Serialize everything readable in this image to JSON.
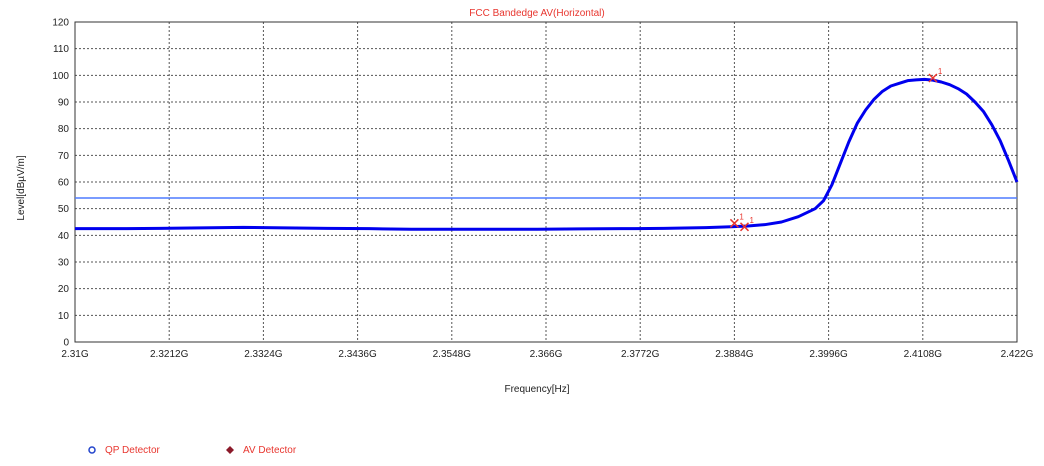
{
  "chart_data": {
    "type": "line",
    "title": "FCC Bandedge AV(Horizontal)",
    "xlabel": "Frequency[Hz]",
    "ylabel": "Level[dBµV/m]",
    "xlim": [
      2.31,
      2.422
    ],
    "ylim": [
      0,
      120
    ],
    "x_unit": "GHz",
    "xticks": [
      2.31,
      2.3212,
      2.3324,
      2.3436,
      2.3548,
      2.366,
      2.3772,
      2.3884,
      2.3996,
      2.4108,
      2.422
    ],
    "xtick_labels": [
      "2.31G",
      "2.3212G",
      "2.3324G",
      "2.3436G",
      "2.3548G",
      "2.366G",
      "2.3772G",
      "2.3884G",
      "2.3996G",
      "2.4108G",
      "2.422G"
    ],
    "yticks": [
      0,
      10,
      20,
      30,
      40,
      50,
      60,
      70,
      80,
      90,
      100,
      110,
      120
    ],
    "ytick_labels": [
      "0",
      "10",
      "20",
      "30",
      "40",
      "50",
      "60",
      "70",
      "80",
      "90",
      "100",
      "110",
      "120"
    ],
    "grid": true,
    "limit_lines": [
      {
        "y": 54,
        "color": "#4f7cff"
      }
    ],
    "series": [
      {
        "color": "#0000ee",
        "x": [
          2.31,
          2.315,
          2.32,
          2.325,
          2.33,
          2.335,
          2.34,
          2.345,
          2.35,
          2.355,
          2.36,
          2.365,
          2.37,
          2.375,
          2.38,
          2.385,
          2.388,
          2.39,
          2.392,
          2.394,
          2.396,
          2.398,
          2.399,
          2.4,
          2.401,
          2.402,
          2.403,
          2.404,
          2.405,
          2.406,
          2.407,
          2.408,
          2.409,
          2.41,
          2.411,
          2.412,
          2.413,
          2.414,
          2.415,
          2.416,
          2.417,
          2.418,
          2.419,
          2.42,
          2.421,
          2.422
        ],
        "y": [
          42.5,
          42.5,
          42.6,
          42.8,
          43,
          42.8,
          42.6,
          42.5,
          42.3,
          42.3,
          42.3,
          42.3,
          42.4,
          42.5,
          42.6,
          42.9,
          43.2,
          43.5,
          44,
          45,
          47,
          50,
          53,
          59,
          67,
          75,
          82,
          87,
          91,
          94,
          96,
          97,
          98,
          98.3,
          98.5,
          98.2,
          97.5,
          96.5,
          95,
          93,
          90,
          86.5,
          81.5,
          75.5,
          68,
          60
        ]
      }
    ],
    "markers": [
      {
        "x": 2.3884,
        "y": 44.5,
        "label": "1",
        "color": "#e8362f"
      },
      {
        "x": 2.3896,
        "y": 43.2,
        "label": "1",
        "color": "#e8362f"
      },
      {
        "x": 2.412,
        "y": 99,
        "label": "1",
        "color": "#e8362f"
      }
    ],
    "legend": [
      {
        "label": "QP Detector",
        "marker": "circle",
        "color": "#2244cc"
      },
      {
        "label": "AV Detector",
        "marker": "diamond",
        "color": "#8b1a2a"
      }
    ]
  }
}
